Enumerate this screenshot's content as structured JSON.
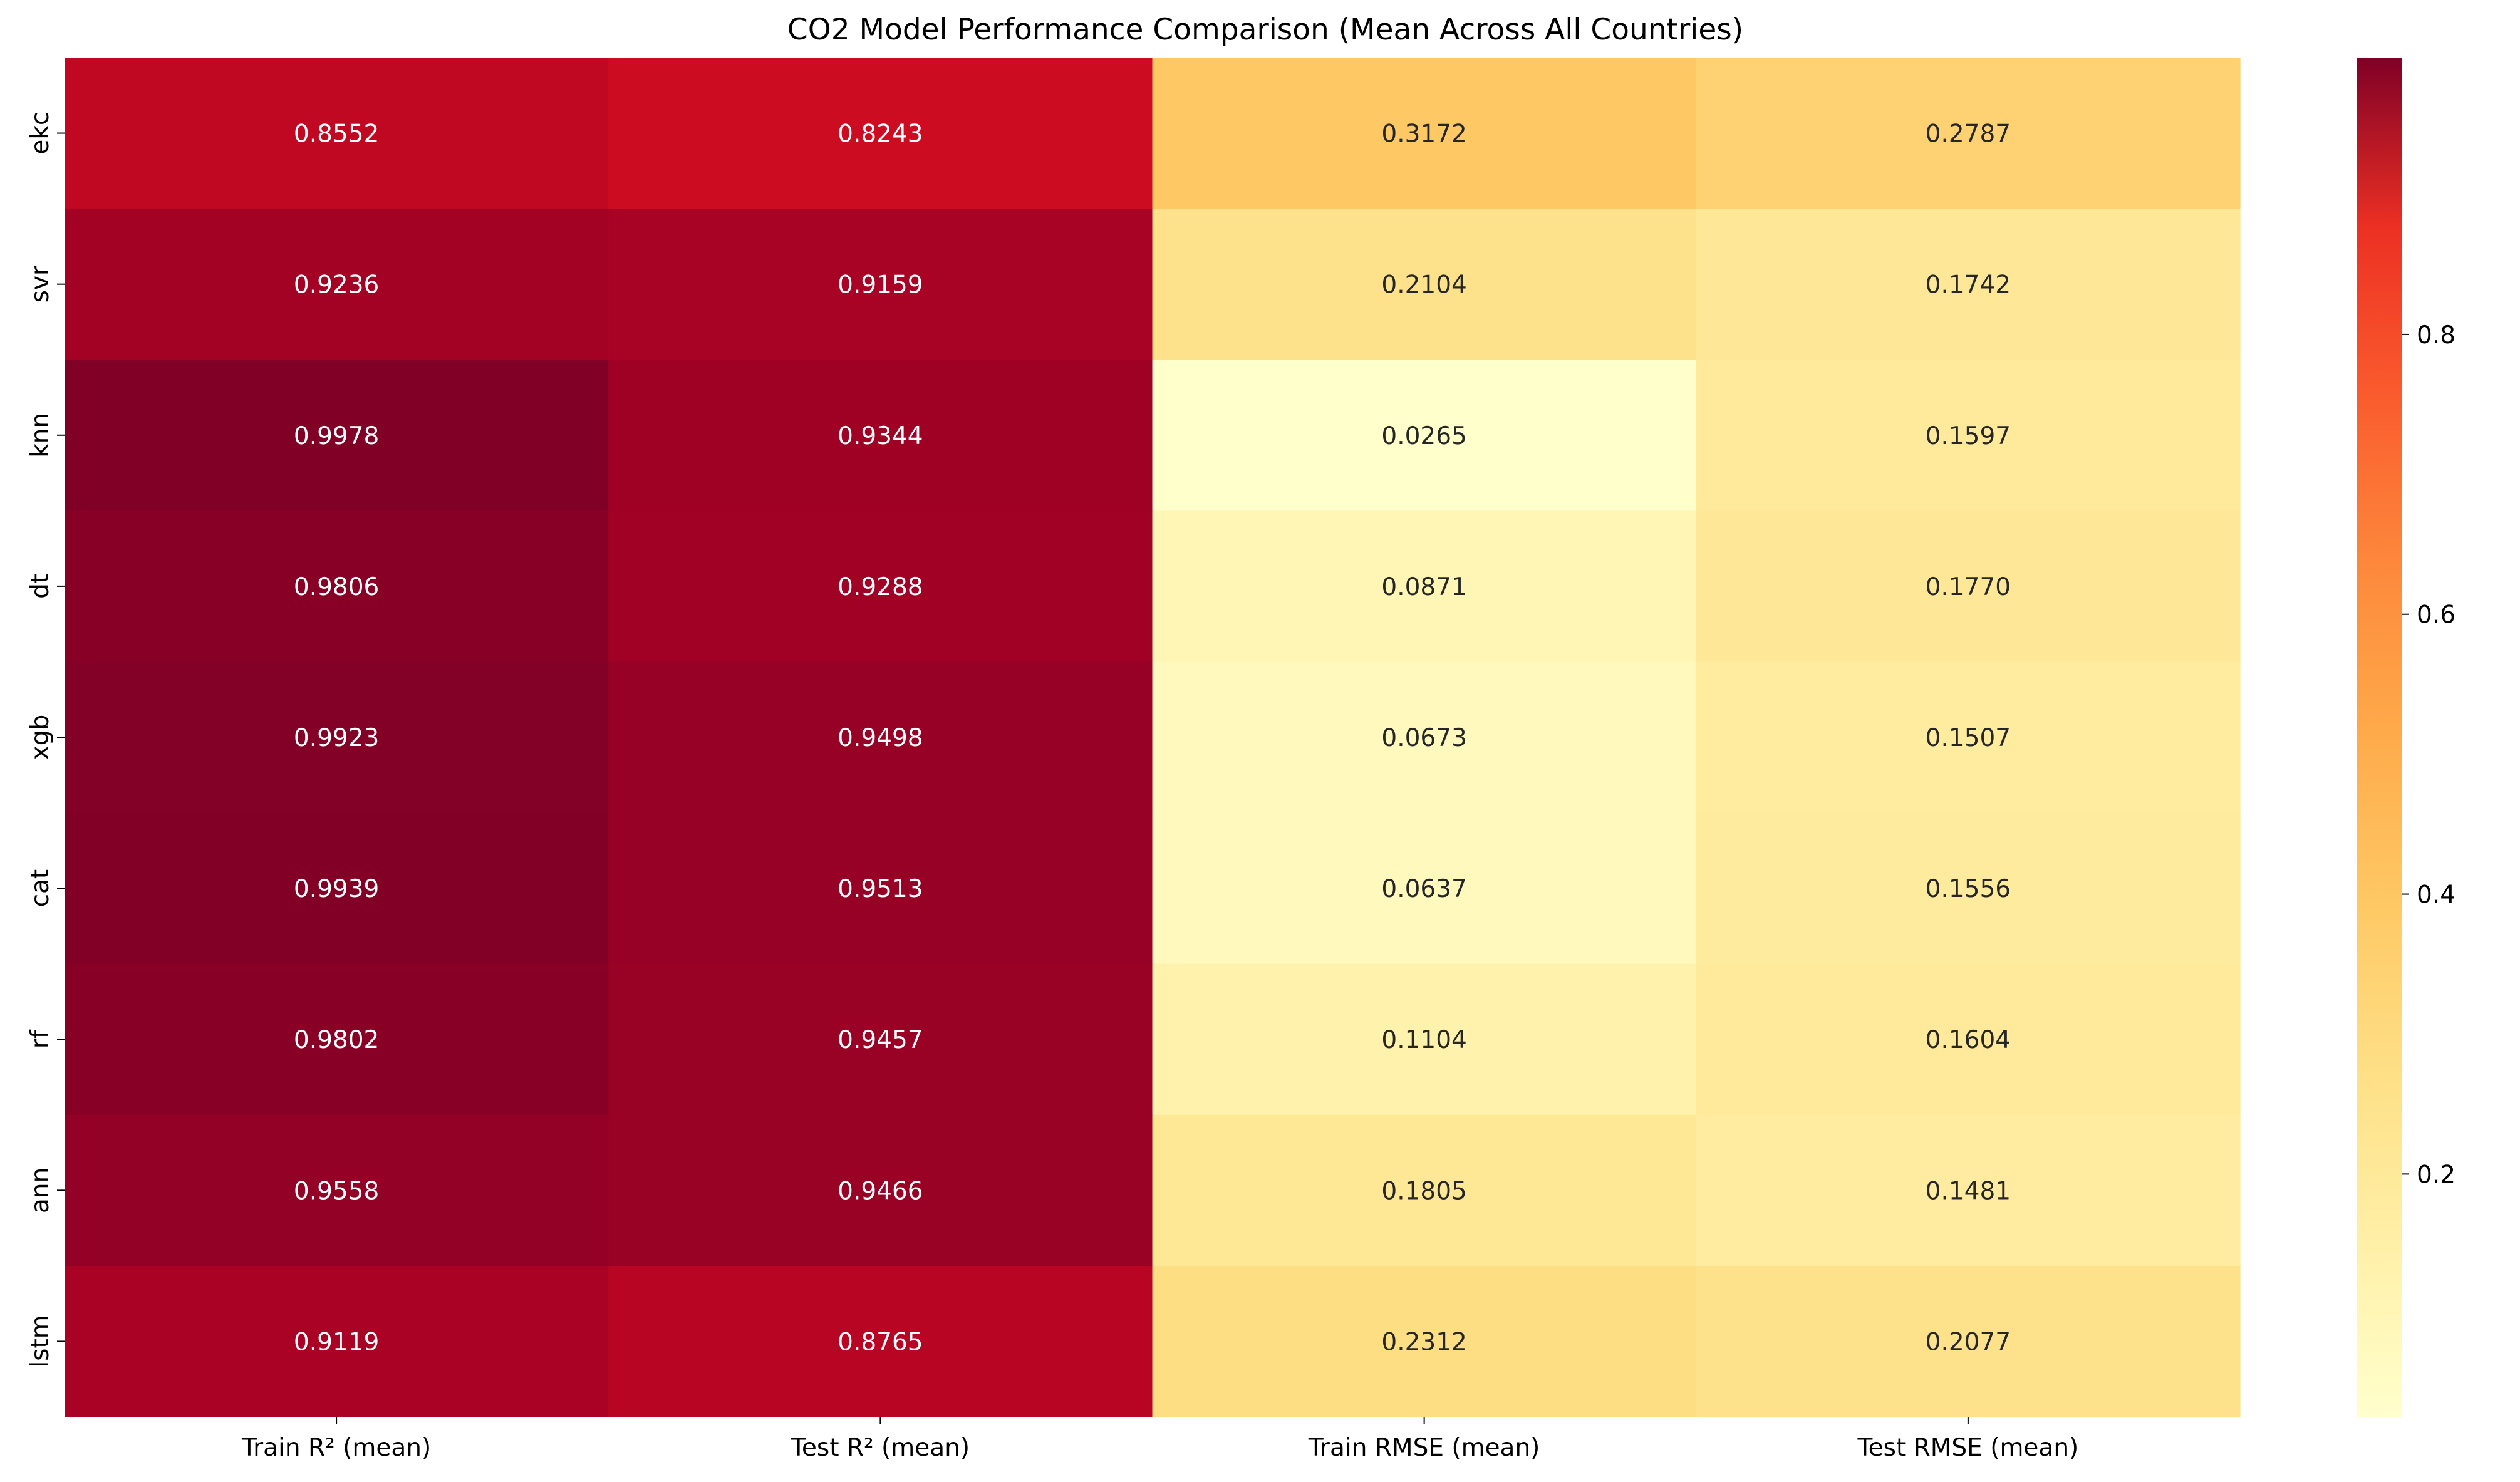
{
  "chart_data": {
    "type": "heatmap",
    "title": "CO2 Model Performance Comparison (Mean Across All Countries)",
    "columns": [
      "Train R² (mean)",
      "Test R² (mean)",
      "Train RMSE (mean)",
      "Test RMSE (mean)"
    ],
    "rows": [
      "ekc",
      "svr",
      "knn",
      "dt",
      "xgb",
      "cat",
      "rf",
      "ann",
      "lstm"
    ],
    "values": [
      [
        0.8552,
        0.8243,
        0.3172,
        0.2787
      ],
      [
        0.9236,
        0.9159,
        0.2104,
        0.1742
      ],
      [
        0.9978,
        0.9344,
        0.0265,
        0.1597
      ],
      [
        0.9806,
        0.9288,
        0.0871,
        0.177
      ],
      [
        0.9923,
        0.9498,
        0.0673,
        0.1507
      ],
      [
        0.9939,
        0.9513,
        0.0637,
        0.1556
      ],
      [
        0.9802,
        0.9457,
        0.1104,
        0.1604
      ],
      [
        0.9558,
        0.9466,
        0.1805,
        0.1481
      ],
      [
        0.9119,
        0.8765,
        0.2312,
        0.2077
      ]
    ],
    "value_format": "4 decimals",
    "colormap": "YlOrRd",
    "colorbar": {
      "range": [
        0.0265,
        0.9978
      ],
      "ticks": [
        0.2,
        0.4,
        0.6,
        0.8
      ],
      "tick_labels": [
        "0.2",
        "0.4",
        "0.6",
        "0.8"
      ]
    },
    "grid": false,
    "legend": "colorbar right"
  }
}
